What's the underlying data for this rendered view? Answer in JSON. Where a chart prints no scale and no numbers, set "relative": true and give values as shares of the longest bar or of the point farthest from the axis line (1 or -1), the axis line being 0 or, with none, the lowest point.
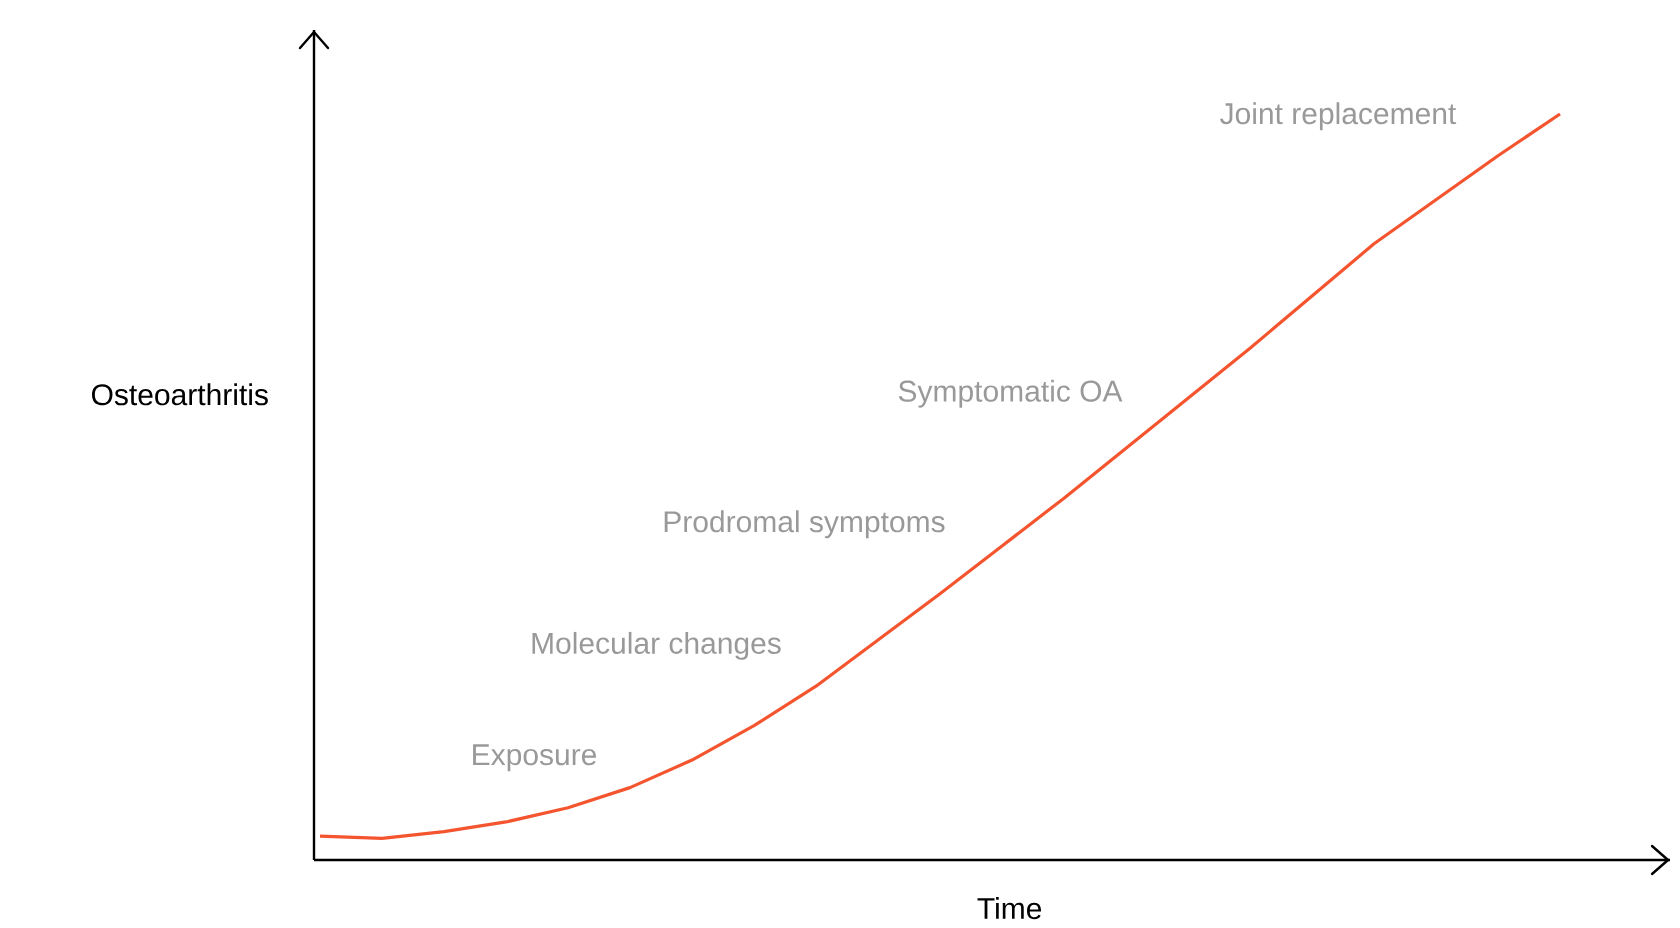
{
  "chart_data": {
    "type": "line",
    "relative": true,
    "xlabel": "Time",
    "ylabel": "Osteoarthritis",
    "categories": [
      null,
      null,
      null,
      null,
      null,
      null,
      null,
      null,
      null,
      null,
      null,
      null,
      null,
      null,
      null,
      null,
      null,
      null,
      null,
      null,
      null
    ],
    "series": [
      {
        "color": "#f4552f",
        "values": [
          0.032,
          0.029,
          0.038,
          0.051,
          0.07,
          0.097,
          0.134,
          0.18,
          0.233,
          0.295,
          0.357,
          0.421,
          0.485,
          0.552,
          0.619,
          0.686,
          0.756,
          0.826,
          0.885,
          0.944,
          1
        ]
      }
    ],
    "annotations": [
      "Exposure",
      "Molecular changes",
      "Prodromal symptoms",
      "Symptomatic OA",
      "Joint replacement"
    ],
    "marker": "none",
    "line_style": "solid"
  }
}
